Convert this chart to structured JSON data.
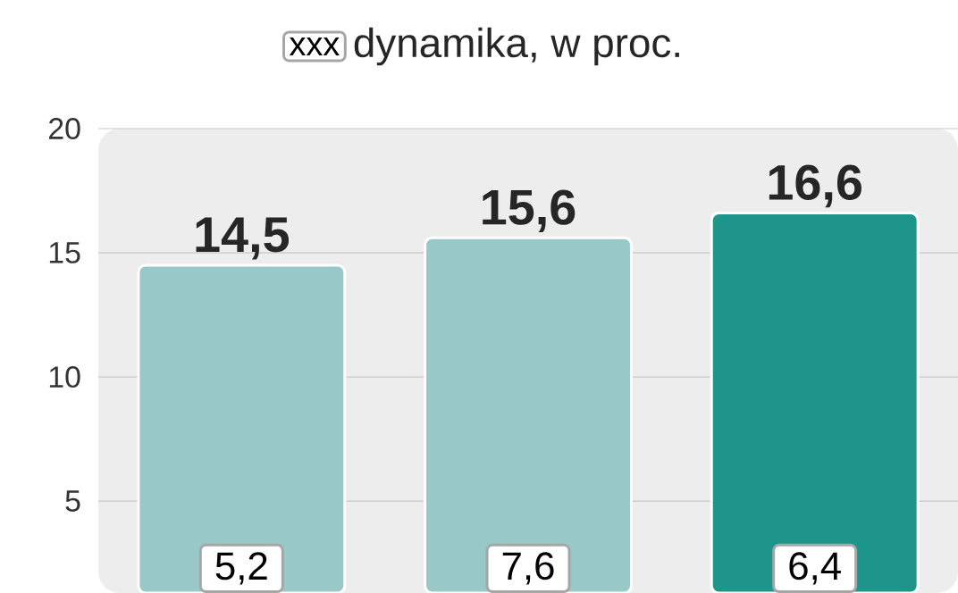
{
  "chart_data": {
    "type": "bar",
    "categories": [
      null,
      null,
      null
    ],
    "values": [
      14.5,
      15.6,
      16.6
    ],
    "colors": [
      "#98c8c7",
      "#98c8c7",
      "#1e958a"
    ],
    "value_labels": [
      "14,5",
      "15,6",
      "16,6"
    ],
    "legend_title": "dynamika, w proc.",
    "annotations": [
      "xxx",
      "5,2",
      "7,6",
      "6,4"
    ],
    "ylim": [
      1.3,
      20
    ],
    "yticks": [
      5,
      10,
      15,
      20
    ],
    "grid": "y",
    "tick_labels": "y"
  }
}
